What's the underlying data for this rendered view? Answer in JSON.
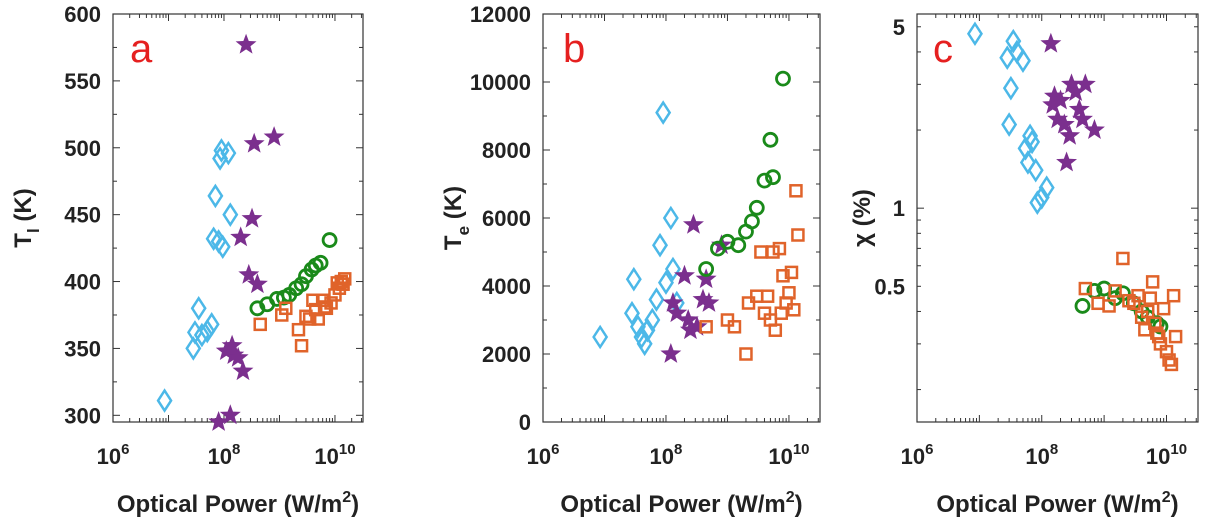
{
  "colors": {
    "diamond": "#4cb8e8",
    "star": "#7b2f8e",
    "circle": "#1a8a1a",
    "square": "#e0632a",
    "letter": "#e52020"
  },
  "chart_data": [
    {
      "panel": "a",
      "type": "scatter",
      "xlabel": "Optical Power (W/m²)",
      "ylabel": "T_l (K)",
      "ylabel_main": "T",
      "ylabel_sub": "l",
      "ylabel_units": " (K)",
      "xscale": "log",
      "xlim": [
        1000000.0,
        32000000000.0
      ],
      "ylim": [
        295,
        600
      ],
      "yticks": [
        300,
        350,
        400,
        450,
        500,
        550,
        600
      ],
      "xticks": [
        {
          "exp": 6,
          "label": "10",
          "sup": "6"
        },
        {
          "exp": 8,
          "label": "10",
          "sup": "8"
        },
        {
          "exp": 10,
          "label": "10",
          "sup": "10"
        }
      ],
      "series": [
        {
          "marker": "diamond",
          "points": [
            [
              8500000.0,
              311
            ],
            [
              28000000.0,
              350
            ],
            [
              30000000.0,
              362
            ],
            [
              35000000.0,
              380
            ],
            [
              40000000.0,
              360
            ],
            [
              50000000.0,
              363
            ],
            [
              60000000.0,
              368
            ],
            [
              65000000.0,
              432
            ],
            [
              70000000.0,
              464
            ],
            [
              80000000.0,
              430
            ],
            [
              85000000.0,
              492
            ],
            [
              90000000.0,
              498
            ],
            [
              95000000.0,
              426
            ],
            [
              120000000.0,
              496
            ],
            [
              130000000.0,
              450
            ]
          ]
        },
        {
          "marker": "star",
          "points": [
            [
              80000000.0,
              295
            ],
            [
              110000000.0,
              348
            ],
            [
              130000000.0,
              300
            ],
            [
              140000000.0,
              352
            ],
            [
              150000000.0,
              345
            ],
            [
              180000000.0,
              343
            ],
            [
              200000000.0,
              433
            ],
            [
              220000000.0,
              333
            ],
            [
              250000000.0,
              577
            ],
            [
              280000000.0,
              405
            ],
            [
              320000000.0,
              447
            ],
            [
              350000000.0,
              503
            ],
            [
              400000000.0,
              398
            ],
            [
              800000000.0,
              508
            ]
          ]
        },
        {
          "marker": "circle",
          "points": [
            [
              400000000.0,
              380
            ],
            [
              600000000.0,
              383
            ],
            [
              900000000.0,
              387
            ],
            [
              1200000000.0,
              388
            ],
            [
              1500000000.0,
              390
            ],
            [
              2000000000.0,
              395
            ],
            [
              2500000000.0,
              398
            ],
            [
              3000000000.0,
              404
            ],
            [
              3800000000.0,
              409
            ],
            [
              4500000000.0,
              412
            ],
            [
              5500000000.0,
              414
            ],
            [
              8000000000.0,
              431
            ]
          ]
        },
        {
          "marker": "square",
          "points": [
            [
              450000000.0,
              368
            ],
            [
              1100000000.0,
              375
            ],
            [
              1300000000.0,
              380
            ],
            [
              2200000000.0,
              364
            ],
            [
              2500000000.0,
              352
            ],
            [
              3000000000.0,
              374
            ],
            [
              3500000000.0,
              372
            ],
            [
              4000000000.0,
              386
            ],
            [
              4500000000.0,
              379
            ],
            [
              5000000000.0,
              372
            ],
            [
              6000000000.0,
              386
            ],
            [
              6500000000.0,
              381
            ],
            [
              7000000000.0,
              380
            ],
            [
              8500000000.0,
              384
            ],
            [
              10000000000.0,
              390
            ],
            [
              11000000000.0,
              399
            ],
            [
              12000000000.0,
              395
            ],
            [
              13000000000.0,
              400
            ],
            [
              14000000000.0,
              398
            ],
            [
              15000000000.0,
              402
            ]
          ]
        }
      ]
    },
    {
      "panel": "b",
      "type": "scatter",
      "xlabel": "Optical Power (W/m²)",
      "ylabel": "T_e (K)",
      "ylabel_main": "T",
      "ylabel_sub": "e",
      "ylabel_units": " (K)",
      "xscale": "log",
      "xlim": [
        1000000.0,
        32000000000.0
      ],
      "ylim": [
        0,
        12000
      ],
      "yticks": [
        0,
        2000,
        4000,
        6000,
        8000,
        10000,
        12000
      ],
      "xticks": [
        {
          "exp": 6,
          "label": "10",
          "sup": "6"
        },
        {
          "exp": 8,
          "label": "10",
          "sup": "8"
        },
        {
          "exp": 10,
          "label": "10",
          "sup": "10"
        }
      ],
      "series": [
        {
          "marker": "diamond",
          "points": [
            [
              8500000.0,
              2500
            ],
            [
              28000000.0,
              3200
            ],
            [
              30000000.0,
              4200
            ],
            [
              35000000.0,
              2800
            ],
            [
              40000000.0,
              2500
            ],
            [
              45000000.0,
              2300
            ],
            [
              50000000.0,
              2700
            ],
            [
              60000000.0,
              3000
            ],
            [
              70000000.0,
              3600
            ],
            [
              80000000.0,
              5200
            ],
            [
              90000000.0,
              9100
            ],
            [
              120000000.0,
              6000
            ],
            [
              130000000.0,
              4500
            ],
            [
              150000000.0,
              3500
            ],
            [
              100000000.0,
              4100
            ]
          ]
        },
        {
          "marker": "star",
          "points": [
            [
              120000000.0,
              2000
            ],
            [
              130000000.0,
              3500
            ],
            [
              150000000.0,
              3200
            ],
            [
              200000000.0,
              4300
            ],
            [
              230000000.0,
              3000
            ],
            [
              250000000.0,
              2700
            ],
            [
              280000000.0,
              5800
            ],
            [
              320000000.0,
              2800
            ],
            [
              400000000.0,
              3600
            ],
            [
              450000000.0,
              4200
            ],
            [
              500000000.0,
              3500
            ],
            [
              800000000.0,
              5200
            ]
          ]
        },
        {
          "marker": "circle",
          "points": [
            [
              450000000.0,
              4500
            ],
            [
              700000000.0,
              5100
            ],
            [
              1000000000.0,
              5300
            ],
            [
              1500000000.0,
              5200
            ],
            [
              2000000000.0,
              5600
            ],
            [
              2500000000.0,
              5900
            ],
            [
              3000000000.0,
              6300
            ],
            [
              4000000000.0,
              7100
            ],
            [
              5000000000.0,
              8300
            ],
            [
              5500000000.0,
              7200
            ],
            [
              8000000000.0,
              10100
            ]
          ]
        },
        {
          "marker": "square",
          "points": [
            [
              450000000.0,
              2800
            ],
            [
              1000000000.0,
              3000
            ],
            [
              1300000000.0,
              2800
            ],
            [
              2000000000.0,
              2000
            ],
            [
              2200000000.0,
              3500
            ],
            [
              3000000000.0,
              3700
            ],
            [
              3500000000.0,
              5000
            ],
            [
              4000000000.0,
              3200
            ],
            [
              4500000000.0,
              3700
            ],
            [
              5000000000.0,
              3000
            ],
            [
              5500000000.0,
              5000
            ],
            [
              6000000000.0,
              2700
            ],
            [
              7000000000.0,
              5100
            ],
            [
              7500000000.0,
              3200
            ],
            [
              8000000000.0,
              4300
            ],
            [
              9000000000.0,
              3500
            ],
            [
              10000000000.0,
              3800
            ],
            [
              11000000000.0,
              4400
            ],
            [
              12000000000.0,
              3300
            ],
            [
              13000000000.0,
              6800
            ],
            [
              14000000000.0,
              5500
            ]
          ]
        }
      ]
    },
    {
      "panel": "c",
      "type": "scatter",
      "xlabel": "Optical Power (W/m²)",
      "ylabel": "χ (%)",
      "xscale": "log",
      "yscale": "log",
      "xlim": [
        1000000.0,
        32000000000.0
      ],
      "ylim": [
        0.15,
        5.6
      ],
      "yticks": [
        0.5,
        1,
        5
      ],
      "ytick_labels": [
        "0.5",
        "1",
        "5"
      ],
      "xticks": [
        {
          "exp": 6,
          "label": "10",
          "sup": "6"
        },
        {
          "exp": 8,
          "label": "10",
          "sup": "8"
        },
        {
          "exp": 10,
          "label": "10",
          "sup": "10"
        }
      ],
      "series": [
        {
          "marker": "diamond",
          "points": [
            [
              8500000.0,
              4.7
            ],
            [
              28000000.0,
              3.8
            ],
            [
              30000000.0,
              2.1
            ],
            [
              32000000.0,
              2.9
            ],
            [
              35000000.0,
              4.4
            ],
            [
              40000000.0,
              4.0
            ],
            [
              50000000.0,
              3.7
            ],
            [
              55000000.0,
              1.7
            ],
            [
              60000000.0,
              1.5
            ],
            [
              65000000.0,
              1.9
            ],
            [
              70000000.0,
              1.8
            ],
            [
              80000000.0,
              1.4
            ],
            [
              85000000.0,
              1.05
            ],
            [
              100000000.0,
              1.1
            ],
            [
              120000000.0,
              1.2
            ]
          ]
        },
        {
          "marker": "star",
          "points": [
            [
              140000000.0,
              4.3
            ],
            [
              150000000.0,
              2.5
            ],
            [
              160000000.0,
              2.7
            ],
            [
              180000000.0,
              2.2
            ],
            [
              200000000.0,
              2.6
            ],
            [
              230000000.0,
              2.1
            ],
            [
              250000000.0,
              1.5
            ],
            [
              280000000.0,
              1.9
            ],
            [
              300000000.0,
              3.0
            ],
            [
              350000000.0,
              2.8
            ],
            [
              400000000.0,
              2.4
            ],
            [
              450000000.0,
              2.2
            ],
            [
              500000000.0,
              3.0
            ],
            [
              700000000.0,
              2.0
            ]
          ]
        },
        {
          "marker": "circle",
          "points": [
            [
              450000000.0,
              0.42
            ],
            [
              700000000.0,
              0.48
            ],
            [
              1000000000.0,
              0.49
            ],
            [
              1500000000.0,
              0.45
            ],
            [
              2000000000.0,
              0.47
            ],
            [
              3000000000.0,
              0.43
            ],
            [
              4000000000.0,
              0.4
            ],
            [
              5000000000.0,
              0.38
            ],
            [
              7000000000.0,
              0.36
            ],
            [
              8000000000.0,
              0.35
            ]
          ]
        },
        {
          "marker": "square",
          "points": [
            [
              500000000.0,
              0.49
            ],
            [
              800000000.0,
              0.43
            ],
            [
              1200000000.0,
              0.42
            ],
            [
              1500000000.0,
              0.48
            ],
            [
              2000000000.0,
              0.64
            ],
            [
              2500000000.0,
              0.44
            ],
            [
              3000000000.0,
              0.43
            ],
            [
              3500000000.0,
              0.46
            ],
            [
              4000000000.0,
              0.38
            ],
            [
              4500000000.0,
              0.34
            ],
            [
              5000000000.0,
              0.4
            ],
            [
              5500000000.0,
              0.45
            ],
            [
              6000000000.0,
              0.52
            ],
            [
              6500000000.0,
              0.36
            ],
            [
              7000000000.0,
              0.33
            ],
            [
              7500000000.0,
              0.32
            ],
            [
              8000000000.0,
              0.3
            ],
            [
              9000000000.0,
              0.41
            ],
            [
              10000000000.0,
              0.28
            ],
            [
              11000000000.0,
              0.26
            ],
            [
              12000000000.0,
              0.25
            ],
            [
              13000000000.0,
              0.46
            ],
            [
              14000000000.0,
              0.32
            ]
          ]
        }
      ]
    }
  ]
}
